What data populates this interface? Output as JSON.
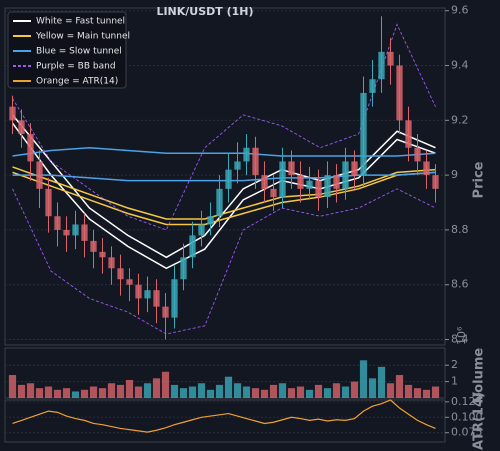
{
  "chart_data": [
    {
      "type": "candlestick",
      "title": "LINK/USDT (1H)",
      "ylabel": "Price",
      "up_color": "#3aa9b8",
      "down_color": "#d9646b",
      "open": [
        9.25,
        9.2,
        9.15,
        9.05,
        8.95,
        8.85,
        8.8,
        8.78,
        8.82,
        8.76,
        8.72,
        8.7,
        8.66,
        8.62,
        8.6,
        8.55,
        8.58,
        8.52,
        8.48,
        8.62,
        8.7,
        8.78,
        8.82,
        8.85,
        8.95,
        9.02,
        9.05,
        9.1,
        9.0,
        8.95,
        8.92,
        9.05,
        9.0,
        8.95,
        8.98,
        8.92,
        9.0,
        8.95,
        9.05,
        9.0,
        9.3,
        9.35,
        9.45,
        9.4,
        9.2,
        9.1,
        9.05,
        9.0
      ],
      "high": [
        9.29,
        9.24,
        9.19,
        9.09,
        8.99,
        8.9,
        8.85,
        8.87,
        8.86,
        8.8,
        8.77,
        8.74,
        8.71,
        8.66,
        8.64,
        8.63,
        8.62,
        8.57,
        8.67,
        8.75,
        8.83,
        8.87,
        8.9,
        9.0,
        9.08,
        9.12,
        9.15,
        9.14,
        9.05,
        9.0,
        9.1,
        9.09,
        9.05,
        9.03,
        9.02,
        9.05,
        9.04,
        9.1,
        9.09,
        9.36,
        9.42,
        9.58,
        9.5,
        9.44,
        9.25,
        9.15,
        9.09,
        9.04
      ],
      "low": [
        9.15,
        9.1,
        8.98,
        8.88,
        8.79,
        8.74,
        8.72,
        8.73,
        8.7,
        8.66,
        8.64,
        8.6,
        8.56,
        8.54,
        8.49,
        8.5,
        8.46,
        8.4,
        8.44,
        8.58,
        8.66,
        8.74,
        8.78,
        8.81,
        8.9,
        8.97,
        9.0,
        8.95,
        8.9,
        8.87,
        8.88,
        8.95,
        8.9,
        8.91,
        8.87,
        8.88,
        8.9,
        8.91,
        8.95,
        8.96,
        9.25,
        9.3,
        9.33,
        9.15,
        9.05,
        9.0,
        8.95,
        8.9
      ],
      "close": [
        9.2,
        9.15,
        9.05,
        8.95,
        8.85,
        8.8,
        8.78,
        8.82,
        8.76,
        8.72,
        8.7,
        8.66,
        8.62,
        8.6,
        8.55,
        8.58,
        8.52,
        8.48,
        8.62,
        8.7,
        8.78,
        8.82,
        8.85,
        8.95,
        9.02,
        9.05,
        9.1,
        9.0,
        8.95,
        8.92,
        9.05,
        9.0,
        8.95,
        8.98,
        8.92,
        9.0,
        8.95,
        9.05,
        9.0,
        9.3,
        9.35,
        9.45,
        9.4,
        9.2,
        9.1,
        9.05,
        9.0,
        8.95
      ],
      "series": [
        {
          "name": "White = Fast tunnel",
          "color": "#ffffff",
          "upper": [
            9.22,
            9.05,
            8.88,
            8.78,
            8.7,
            8.78,
            8.95,
            9.02,
            8.98,
            9.02,
            9.16,
            9.1
          ],
          "lower": [
            9.19,
            9.0,
            8.84,
            8.74,
            8.66,
            8.73,
            8.91,
            8.98,
            8.95,
            8.99,
            9.13,
            9.08
          ]
        },
        {
          "name": "Yellow = Main tunnel",
          "color": "#f5c842",
          "upper": [
            9.03,
            8.98,
            8.93,
            8.88,
            8.84,
            8.84,
            8.88,
            8.92,
            8.93,
            8.96,
            9.01,
            9.02
          ],
          "lower": [
            9.01,
            8.96,
            8.91,
            8.86,
            8.82,
            8.82,
            8.86,
            8.9,
            8.92,
            8.95,
            9.0,
            9.01
          ]
        },
        {
          "name": "Blue = Slow tunnel",
          "color": "#4aa3e8",
          "upper": [
            9.07,
            9.09,
            9.1,
            9.09,
            9.08,
            9.08,
            9.08,
            9.07,
            9.07,
            9.07,
            9.07,
            9.08
          ],
          "lower": [
            9.0,
            9.0,
            8.99,
            8.98,
            8.98,
            8.98,
            8.98,
            8.99,
            8.99,
            9.0,
            9.0,
            9.01
          ]
        },
        {
          "name": "Purple = BB band",
          "color": "#9b59f5",
          "dashed": true,
          "upper": [
            9.28,
            9.05,
            8.95,
            8.85,
            8.8,
            9.1,
            9.22,
            9.18,
            9.1,
            9.15,
            9.55,
            9.25
          ],
          "lower": [
            8.95,
            8.65,
            8.55,
            8.5,
            8.42,
            8.45,
            8.8,
            8.88,
            8.85,
            8.88,
            8.95,
            8.88
          ]
        }
      ],
      "ylim": [
        8.38,
        9.61
      ],
      "yticks": [
        8.4,
        8.6,
        8.8,
        9.0,
        9.2,
        9.4,
        9.6
      ],
      "grid": true
    },
    {
      "type": "bar",
      "ylabel": "Volume",
      "offset_label": "10⁶",
      "values": [
        1.4,
        0.8,
        0.9,
        0.6,
        0.7,
        0.5,
        0.6,
        0.4,
        0.5,
        0.7,
        0.6,
        0.9,
        0.8,
        1.1,
        0.7,
        0.9,
        1.2,
        1.6,
        0.8,
        0.6,
        0.7,
        0.9,
        0.5,
        0.8,
        1.3,
        0.9,
        0.7,
        0.6,
        0.5,
        0.8,
        0.9,
        0.6,
        0.7,
        0.5,
        0.8,
        0.6,
        0.9,
        0.7,
        1.0,
        2.3,
        1.2,
        1.9,
        0.9,
        1.4,
        0.8,
        0.6,
        0.5,
        0.7
      ],
      "ylim": [
        0,
        3.05
      ],
      "yticks": [
        1,
        2
      ],
      "grid": true
    },
    {
      "type": "line",
      "ylabel": "ATR(14)",
      "series": [
        {
          "name": "Orange = ATR(14)",
          "color": "#f0a030",
          "values": [
            0.09,
            0.095,
            0.1,
            0.105,
            0.11,
            0.108,
            0.102,
            0.098,
            0.095,
            0.09,
            0.088,
            0.085,
            0.082,
            0.08,
            0.078,
            0.076,
            0.079,
            0.083,
            0.088,
            0.092,
            0.096,
            0.1,
            0.102,
            0.104,
            0.106,
            0.102,
            0.098,
            0.094,
            0.09,
            0.092,
            0.096,
            0.1,
            0.098,
            0.095,
            0.097,
            0.094,
            0.096,
            0.095,
            0.098,
            0.11,
            0.118,
            0.122,
            0.128,
            0.115,
            0.105,
            0.095,
            0.088,
            0.082
          ]
        }
      ],
      "ylim": [
        0.06,
        0.128
      ],
      "yticks": [
        0.075,
        {
          "value": 0.1,
          "label": "0.100"
        },
        0.125
      ],
      "grid": true
    }
  ]
}
